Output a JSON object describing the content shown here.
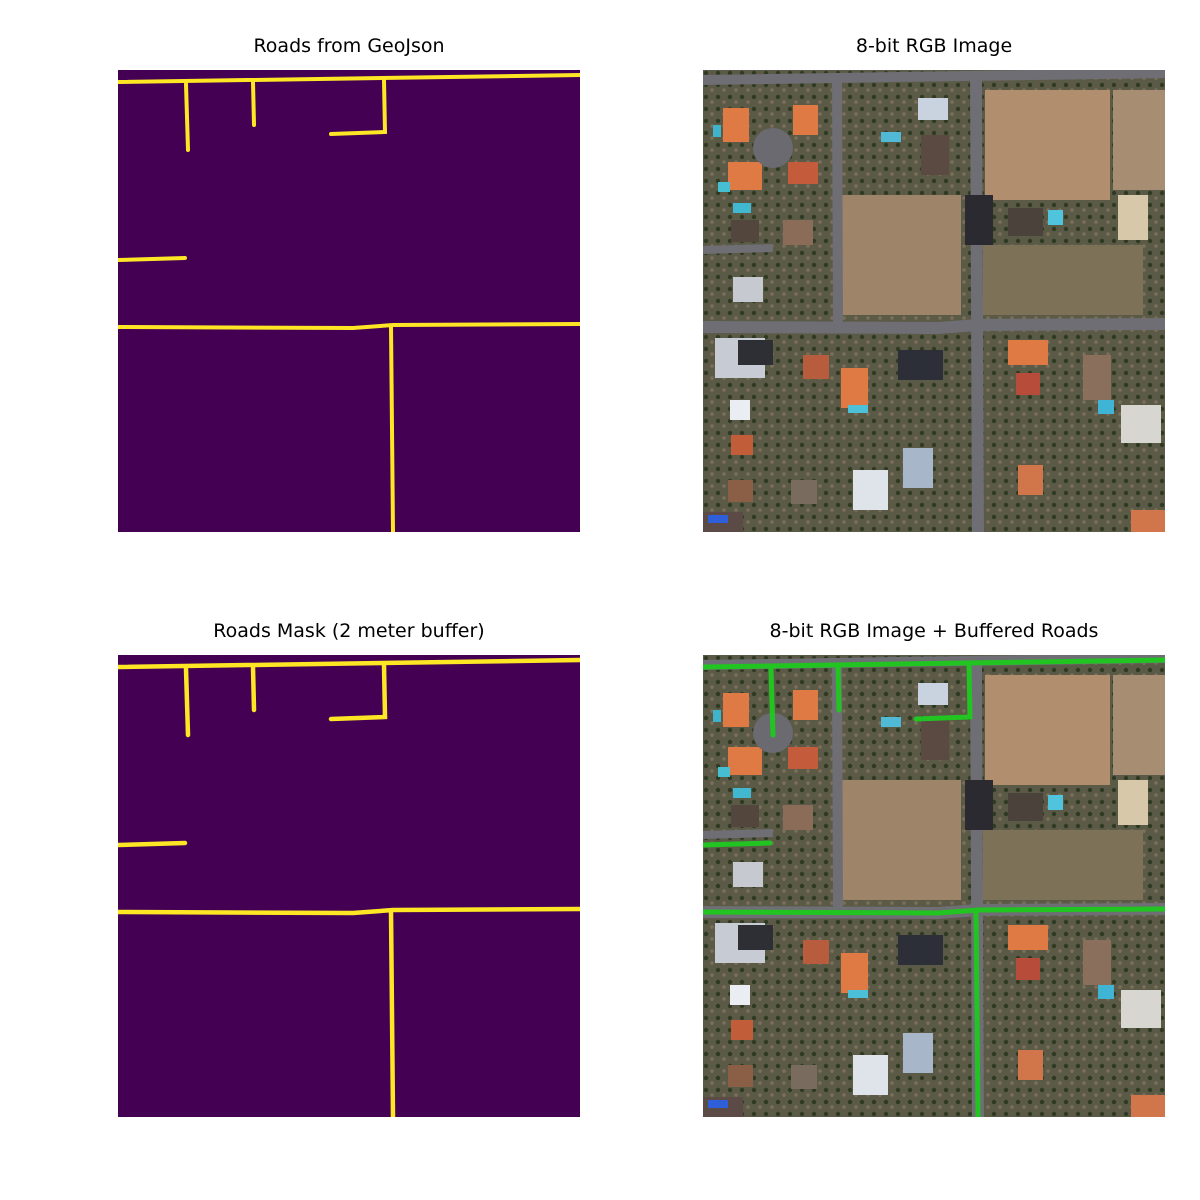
{
  "panels": [
    {
      "id": "p1",
      "title": "Roads from GeoJson",
      "kind": "mask",
      "mask_color": "#440154",
      "road_color": "#fde725"
    },
    {
      "id": "p2",
      "title": "8-bit RGB Image",
      "kind": "rgb"
    },
    {
      "id": "p3",
      "title": "Roads Mask (2 meter buffer)",
      "kind": "mask",
      "mask_color": "#440154",
      "road_color": "#fde725"
    },
    {
      "id": "p4",
      "title": "8-bit RGB Image + Buffered Roads",
      "kind": "rgb-overlay",
      "overlay_color": "#22c422"
    }
  ]
}
